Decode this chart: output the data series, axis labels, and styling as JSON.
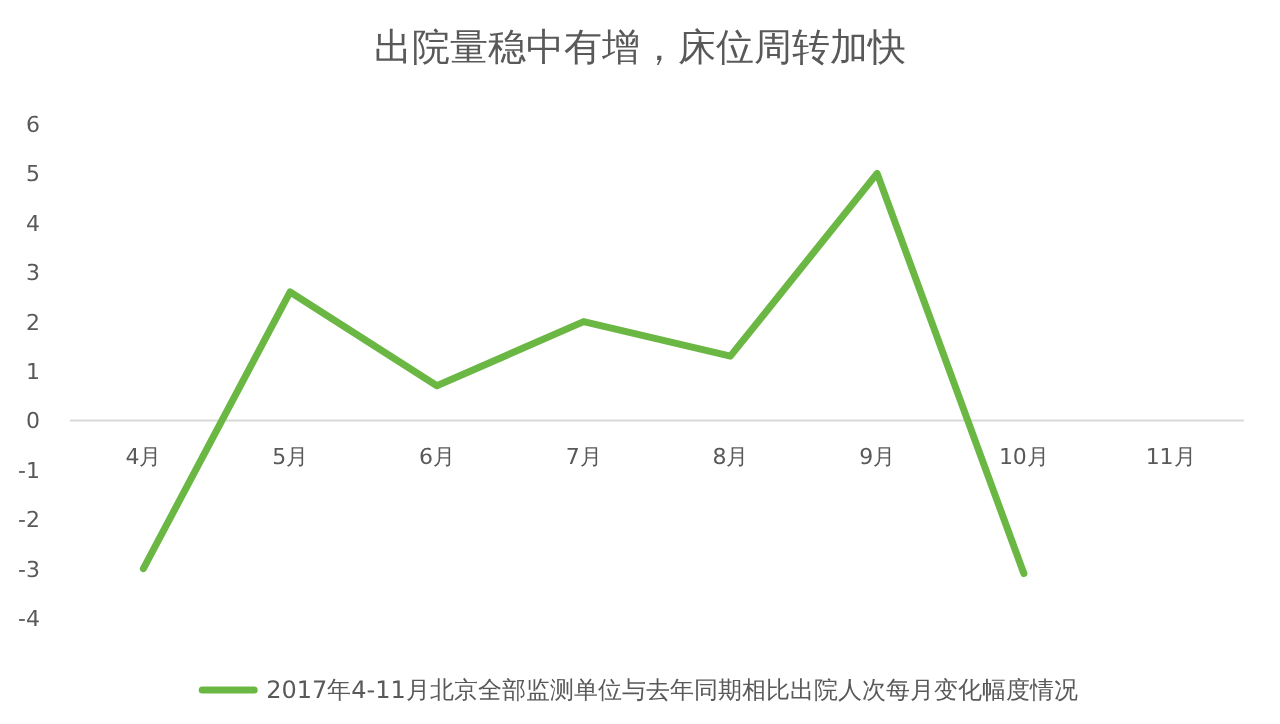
{
  "chart_data": {
    "type": "line",
    "title": "出院量稳中有增，床位周转加快",
    "categories": [
      "4月",
      "5月",
      "6月",
      "7月",
      "8月",
      "9月",
      "10月",
      "11月"
    ],
    "series": [
      {
        "name": "2017年4-11月北京全部监测单位与去年同期相比出院人次每月变化幅度情况",
        "color": "#6ab843",
        "values": [
          -3,
          2.6,
          0.7,
          2.0,
          1.3,
          5.0,
          -3.1,
          null
        ]
      }
    ],
    "ylim": [
      -4,
      6
    ],
    "yticks": [
      -4,
      -3,
      -2,
      -1,
      0,
      1,
      2,
      3,
      4,
      5,
      6
    ],
    "grid": false,
    "legend": "bottom",
    "marker": "none",
    "line_style": "solid"
  }
}
